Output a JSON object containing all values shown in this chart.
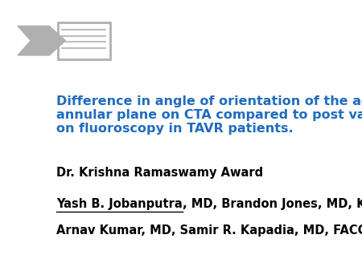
{
  "background_color": "#ffffff",
  "title_text": "Difference in angle of orientation of the aortic valve in the\nannular plane on CTA compared to post valve deployment\non fluoroscopy in TAVR patients.",
  "title_color": "#1f6cbf",
  "title_fontsize": 11.5,
  "award_text": "Dr. Krishna Ramaswamy Award",
  "award_fontsize": 10.5,
  "award_color": "#000000",
  "authors_underlined": "Yash B. Jobanputra",
  "authors_rest_line1": ", MD, Brandon Jones, MD, Kimi Sato, MD,",
  "authors_line2": "Arnav Kumar, MD, Samir R. Kapadia, MD, FACC",
  "authors_fontsize": 10.5,
  "authors_color": "#000000",
  "arrow_color": "#b0b0b0"
}
